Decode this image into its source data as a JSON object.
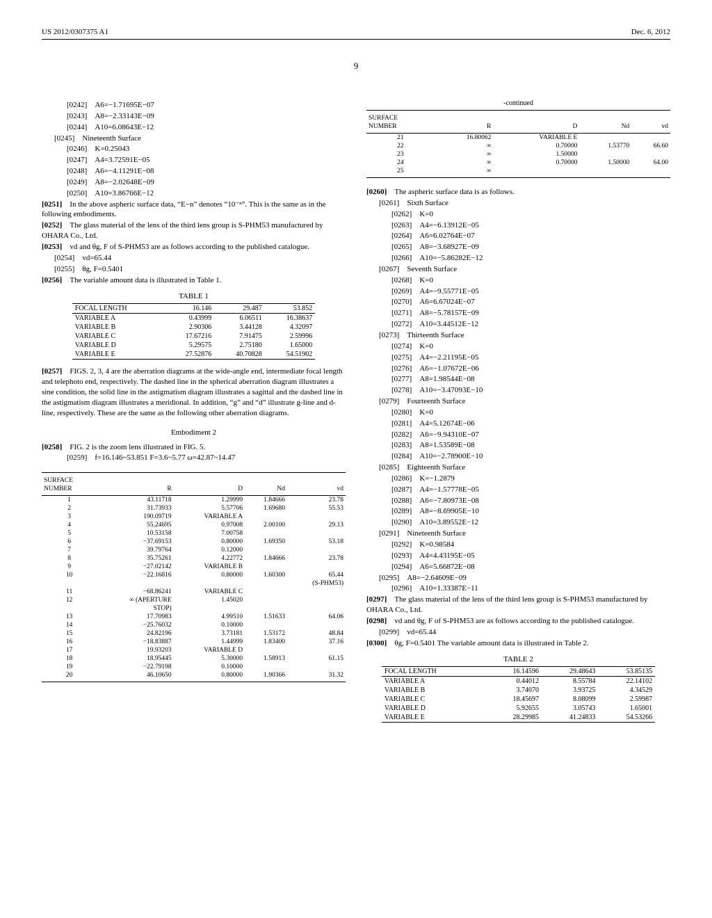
{
  "header": {
    "left": "US 2012/0307375 A1",
    "right": "Dec. 6, 2012",
    "page": "9"
  },
  "left": {
    "p0242": "[0242] A6=−1.71695E−07",
    "p0243": "[0243] A8=−2.33143E−09",
    "p0244": "[0244] A10=6.08643E−12",
    "p0245": "[0245] Nineteenth Surface",
    "p0246": "[0246] K=0.25043",
    "p0247": "[0247] A4=3.72591E−05",
    "p0248": "[0248] A6=−4.11291E−08",
    "p0249": "[0249] A8=−2.02648E−09",
    "p0250": "[0250] A10=3.86766E−12",
    "p0251a": "[0251]",
    "p0251b": " In the above aspheric surface data, “E−n” denotes “10⁻ⁿ”. This is the same as in the following embodiments.",
    "p0252a": "[0252]",
    "p0252b": " The glass material of the lens of the third lens group is S-PHM53 manufactured by OHARA Co., Ltd.",
    "p0253a": "[0253]",
    "p0253b": " vd and θg, F of S-PHM53 are as follows according to the published catalogue.",
    "p0254": "[0254] vd=65.44",
    "p0255": "[0255] θg, F=0.5401",
    "p0256a": "[0256]",
    "p0256b": " The variable amount data is illustrated in Table 1.",
    "table1": {
      "title": "TABLE 1",
      "header": [
        "FOCAL LENGTH",
        "16.146",
        "29.487",
        "53.852"
      ],
      "rows": [
        [
          "VARIABLE A",
          "0.43999",
          "6.06511",
          "16.38637"
        ],
        [
          "VARIABLE B",
          "2.90306",
          "3.44128",
          "4.32097"
        ],
        [
          "VARIABLE C",
          "17.67216",
          "7.91475",
          "2.59996"
        ],
        [
          "VARIABLE D",
          "5.29575",
          "2.75180",
          "1.65000"
        ],
        [
          "VARIABLE E",
          "27.52876",
          "40.70828",
          "54.51902"
        ]
      ]
    },
    "p0257a": "[0257]",
    "p0257b": " FIGS. 2, 3, 4 are the aberration diagrams at the wide-angle end, intermediate focal length and telephoto end, respectively. The dashed line in the spherical aberration diagram illustrates a sine condition, the solid line in the astigmatism diagram illustrates a sagittal and the dashed line in the astigmatism diagram illustrates a meridional. In addition, “g” and “d” illustrate g-line and d-line, respectively. These are the same as the following other aberration diagrams.",
    "embodiment2": "Embodiment 2",
    "p0258a": "[0258]",
    "p0258b": " FIG. 2 is the zoom lens illustrated in FIG. 5.",
    "p0259": "[0259] f=16.146~53.851 F=3.6~5.77 ω=42.87~14.47",
    "surfTable": {
      "headA": "SURFACE",
      "headB": "NUMBER",
      "cols": [
        "R",
        "D",
        "Nd",
        "vd"
      ],
      "rows": [
        [
          "1",
          "43.11718",
          "1.29999",
          "1.84666",
          "23.78"
        ],
        [
          "2",
          "31.73933",
          "5.57706",
          "1.69680",
          "55.53"
        ],
        [
          "3",
          "190.09719",
          "VARIABLE A",
          "",
          ""
        ],
        [
          "4",
          "55.24695",
          "0.97008",
          "2.00100",
          "29.13"
        ],
        [
          "5",
          "10.53158",
          "7.00758",
          "",
          ""
        ],
        [
          "6",
          "−37.69153",
          "0.80000",
          "1.69350",
          "53.18"
        ],
        [
          "7",
          "39.79764",
          "0.12000",
          "",
          ""
        ],
        [
          "8",
          "35.75261",
          "4.22772",
          "1.84666",
          "23.78"
        ],
        [
          "9",
          "−27.02142",
          "VARIABLE B",
          "",
          ""
        ],
        [
          "10",
          "−22.16816",
          "0.80000",
          "1.60300",
          "65.44"
        ],
        [
          "",
          "",
          "",
          "",
          "(S-PHM53)"
        ],
        [
          "11",
          "−68.86241",
          "VARIABLE C",
          "",
          ""
        ],
        [
          "12",
          "∞ (APERTURE",
          "1.45020",
          "",
          ""
        ],
        [
          "",
          "STOP)",
          "",
          "",
          ""
        ],
        [
          "13",
          "17.70983",
          "4.99510",
          "1.51633",
          "64.06"
        ],
        [
          "14",
          "−25.76032",
          "0.10000",
          "",
          ""
        ],
        [
          "15",
          "24.82196",
          "3.73181",
          "1.53172",
          "48.84"
        ],
        [
          "16",
          "−18.83887",
          "1.44999",
          "1.83400",
          "37.16"
        ],
        [
          "17",
          "19.93203",
          "VARIABLE D",
          "",
          ""
        ],
        [
          "18",
          "18.95445",
          "5.30000",
          "1.58913",
          "61.15"
        ],
        [
          "19",
          "−22.79198",
          "0.10000",
          "",
          ""
        ],
        [
          "20",
          "46.10650",
          "0.80000",
          "1.90366",
          "31.32"
        ]
      ]
    }
  },
  "right": {
    "continued": "-continued",
    "surfTable2": {
      "headA": "SURFACE",
      "headB": "NUMBER",
      "cols": [
        "R",
        "D",
        "Nd",
        "vd"
      ],
      "rows": [
        [
          "21",
          "16.80062",
          "VARIABLE E",
          "",
          ""
        ],
        [
          "22",
          "∞",
          "0.70000",
          "1.53770",
          "66.60"
        ],
        [
          "23",
          "∞",
          "1.50000",
          "",
          ""
        ],
        [
          "24",
          "∞",
          "0.70000",
          "1.50000",
          "64.00"
        ],
        [
          "25",
          "∞",
          "",
          "",
          ""
        ]
      ]
    },
    "p0260a": "[0260]",
    "p0260b": " The aspheric surface data is as follows.",
    "p0261": "[0261] Sixth Surface",
    "p0262": "[0262] K=0",
    "p0263": "[0263] A4=−6.13912E−05",
    "p0264": "[0264] A6=6.02764E−07",
    "p0265": "[0265] A8=−3.68927E−09",
    "p0266": "[0266] A10=−5.86282E−12",
    "p0267": "[0267] Seventh Surface",
    "p0268": "[0268] K=0",
    "p0269": "[0269] A4=−9.55771E−05",
    "p0270": "[0270] A6=6.67024E−07",
    "p0271": "[0271] A8=−5.78157E−09",
    "p0272": "[0272] A10=3.44512E−12",
    "p0273": "[0273] Thirteenth Surface",
    "p0274": "[0274] K=0",
    "p0275": "[0275] A4=−2.21195E−05",
    "p0276": "[0276] A6=−1.07672E−06",
    "p0277": "[0277] A8=1.98544E−08",
    "p0278": "[0278] A10=−3.47093E−10",
    "p0279": "[0279] Fourteenth Surface",
    "p0280": "[0280] K=0",
    "p0281": "[0281] A4=5.12674E−06",
    "p0282": "[0282] A6=−9.94310E−07",
    "p0283": "[0283] A8=1.53589E−08",
    "p0284": "[0284] A10=−2.78900E−10",
    "p0285": "[0285] Eighteenth Surface",
    "p0286": "[0286] K=−1.2879",
    "p0287": "[0287] A4=−1.57778E−05",
    "p0288": "[0288] A6=−7.80973E−08",
    "p0289": "[0289] A8=−8.69905E−10",
    "p0290": "[0290] A10=3.89552E−12",
    "p0291": "[0291] Nineteenth Surface",
    "p0292": "[0292] K=0.98584",
    "p0293": "[0293] A4=4.43195E−05",
    "p0294": "[0294] A6=5.66872E−08",
    "p0295": "[0295] A8=−2.64609E−09",
    "p0296": "[0296] A10=1.33387E−11",
    "p0297a": "[0297]",
    "p0297b": " The glass material of the lens of the third lens group is S-PHM53 manufactured by OHARA Co., Ltd.",
    "p0298a": "[0298]",
    "p0298b": " vd and θg, F of S-PHM53 are as follows according to the published catalogue.",
    "p0299": "[0299] vd=65.44",
    "p0300a": "[0300]",
    "p0300b": " θg, F=0.5401 The variable amount data is illustrated in Table 2.",
    "table2": {
      "title": "TABLE 2",
      "header": [
        "FOCAL LENGTH",
        "16.14596",
        "29.48643",
        "53.85135"
      ],
      "rows": [
        [
          "VARIABLE A",
          "0.44012",
          "8.55784",
          "22.14102"
        ],
        [
          "VARIABLE B",
          "3.74070",
          "3.93725",
          "4.34529"
        ],
        [
          "VARIABLE C",
          "18.45697",
          "8.08099",
          "2.59987"
        ],
        [
          "VARIABLE D",
          "5.92655",
          "3.05743",
          "1.65001"
        ],
        [
          "VARIABLE E",
          "28.29985",
          "41.24833",
          "54.53266"
        ]
      ]
    }
  }
}
